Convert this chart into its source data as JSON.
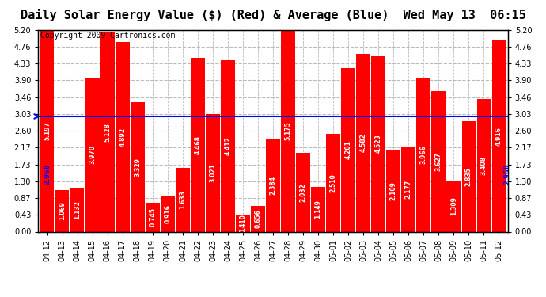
{
  "title": "Daily Solar Energy Value ($) (Red) & Average (Blue)  Wed May 13  06:15",
  "copyright": "Copyright 2009 Cartronics.com",
  "categories": [
    "04-12",
    "04-13",
    "04-14",
    "04-15",
    "04-16",
    "04-17",
    "04-18",
    "04-19",
    "04-20",
    "04-21",
    "04-22",
    "04-23",
    "04-24",
    "04-25",
    "04-26",
    "04-27",
    "04-28",
    "04-29",
    "04-30",
    "05-01",
    "05-02",
    "05-03",
    "05-04",
    "05-05",
    "05-06",
    "05-07",
    "05-08",
    "05-09",
    "05-10",
    "05-11",
    "05-12"
  ],
  "values": [
    5.197,
    1.069,
    1.132,
    3.97,
    5.128,
    4.892,
    3.329,
    0.745,
    0.916,
    1.633,
    4.468,
    3.021,
    4.412,
    0.41,
    0.656,
    2.384,
    5.175,
    2.032,
    1.149,
    2.51,
    4.201,
    4.582,
    4.523,
    2.109,
    2.177,
    3.966,
    3.627,
    1.309,
    2.835,
    3.408,
    4.916
  ],
  "average": 2.968,
  "bar_color": "#ff0000",
  "avg_color": "#0000ff",
  "bg_color": "#ffffff",
  "plot_bg_color": "#ffffff",
  "grid_color": "#bbbbbb",
  "yticks": [
    0.0,
    0.43,
    0.87,
    1.3,
    1.73,
    2.17,
    2.6,
    3.03,
    3.46,
    3.9,
    4.33,
    4.76,
    5.2
  ],
  "ylim": [
    0.0,
    5.2
  ],
  "title_fontsize": 11,
  "copyright_fontsize": 7,
  "tick_fontsize": 7,
  "avg_label": "2.968",
  "val_fontsize": 5.5
}
